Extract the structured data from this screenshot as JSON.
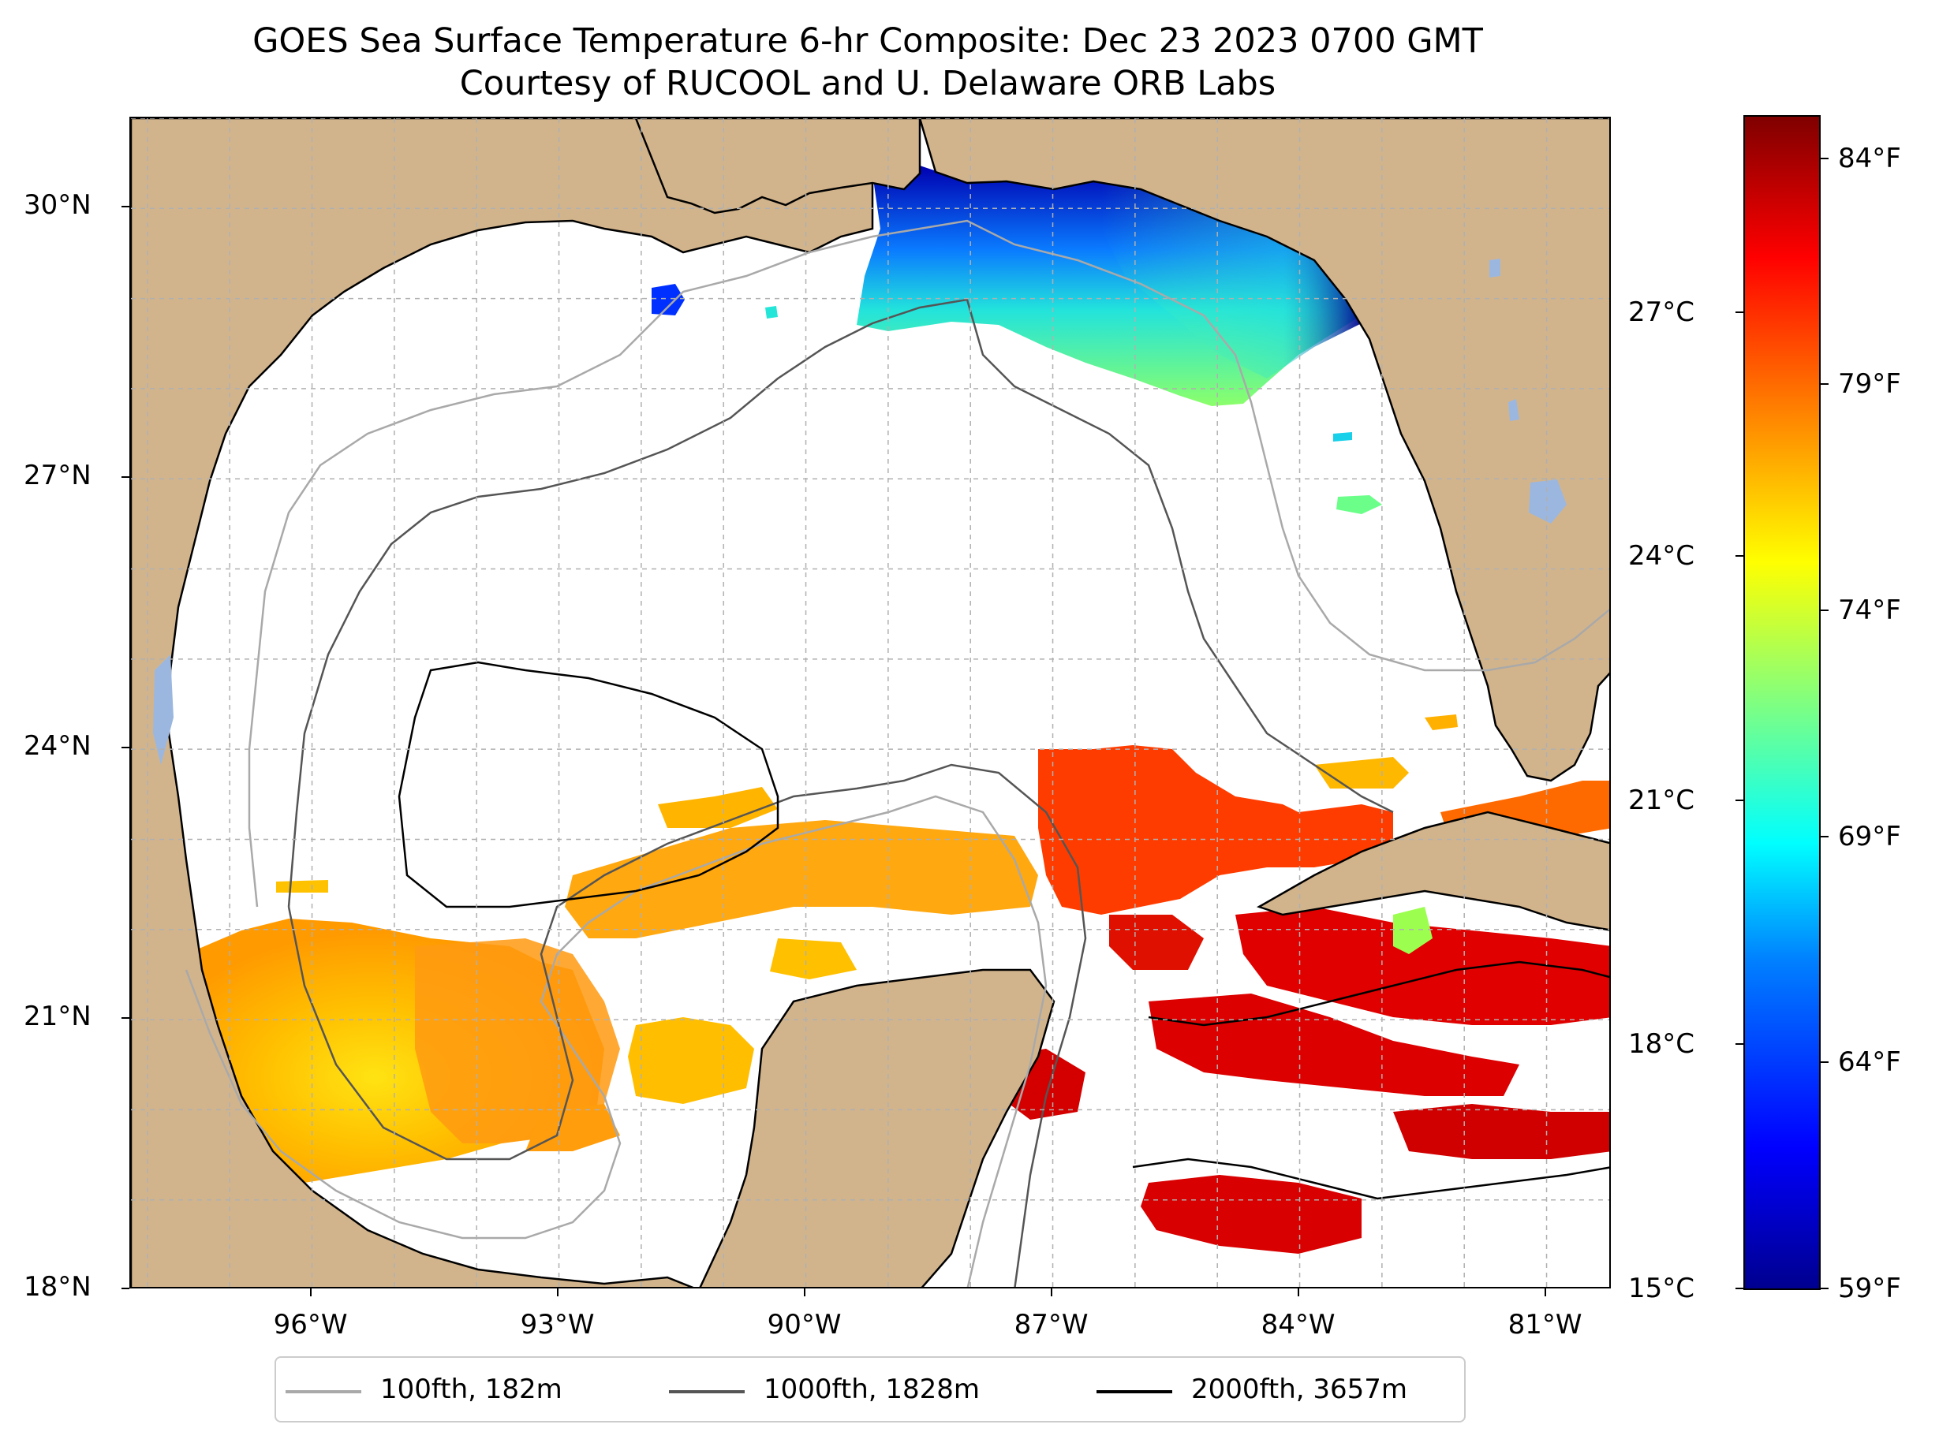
{
  "title": "GOES Sea Surface Temperature 6-hr Composite: Dec 23 2023 0700 GMT",
  "subtitle": "Courtesy of RUCOOL and U. Delaware ORB Labs",
  "map": {
    "extent": {
      "lon": [
        -98.2,
        -80.2
      ],
      "lat": [
        18.0,
        31.0
      ]
    },
    "x_ticks": [
      {
        "lon": -96,
        "label": "96°W"
      },
      {
        "lon": -93,
        "label": "93°W"
      },
      {
        "lon": -90,
        "label": "90°W"
      },
      {
        "lon": -87,
        "label": "87°W"
      },
      {
        "lon": -84,
        "label": "84°W"
      },
      {
        "lon": -81,
        "label": "81°W"
      }
    ],
    "y_ticks": [
      {
        "lat": 30,
        "label": "30°N"
      },
      {
        "lat": 27,
        "label": "27°N"
      },
      {
        "lat": 24,
        "label": "24°N"
      },
      {
        "lat": 21,
        "label": "21°N"
      },
      {
        "lat": 18,
        "label": "18°N"
      }
    ],
    "gridlines": true,
    "land_color": "#D2B48C",
    "lake_color": "#9BB7E0"
  },
  "legend": {
    "placement": "bottom-center",
    "items": [
      {
        "label": "100fth, 182m",
        "color": "#a9a9a9"
      },
      {
        "label": "1000fth, 1828m",
        "color": "#555555"
      },
      {
        "label": "2000fth, 3657m",
        "color": "#000000"
      }
    ]
  },
  "colorbar": {
    "colormap": "jet",
    "range_c": [
      15.0,
      29.4
    ],
    "celsius_ticks": [
      {
        "value": 27,
        "label": "27°C"
      },
      {
        "value": 24,
        "label": "24°C"
      },
      {
        "value": 21,
        "label": "21°C"
      },
      {
        "value": 18,
        "label": "18°C"
      },
      {
        "value": 15,
        "label": "15°C"
      }
    ],
    "fahrenheit_ticks": [
      {
        "value": 84,
        "label": "84°F"
      },
      {
        "value": 79,
        "label": "79°F"
      },
      {
        "value": 74,
        "label": "74°F"
      },
      {
        "value": 69,
        "label": "69°F"
      },
      {
        "value": 64,
        "label": "64°F"
      },
      {
        "value": 59,
        "label": "59°F"
      }
    ]
  }
}
